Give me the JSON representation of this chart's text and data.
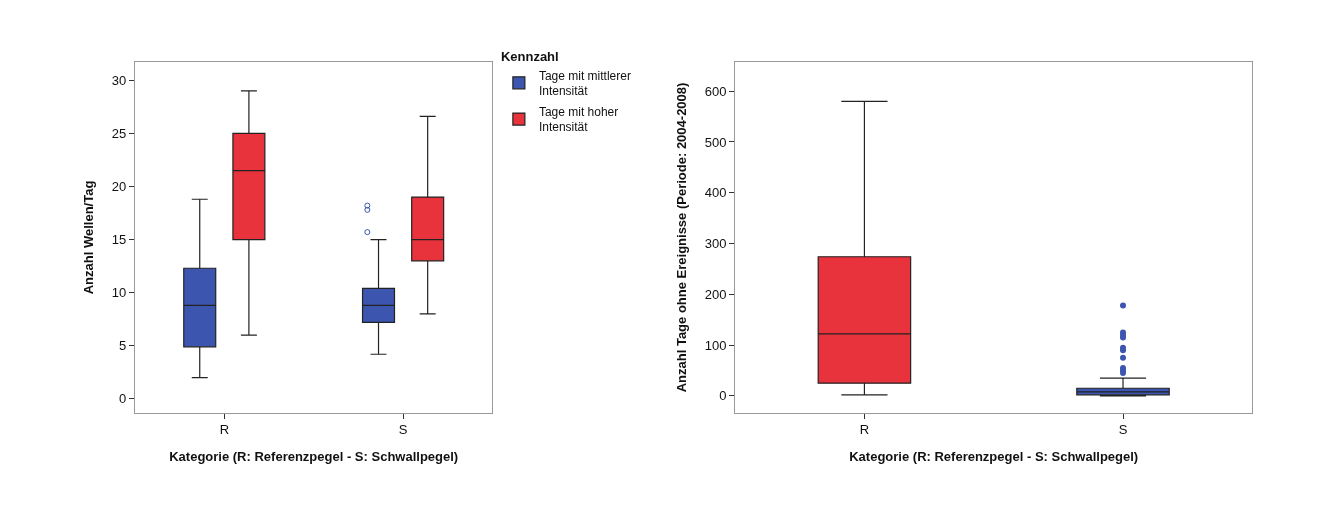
{
  "chart_data": [
    {
      "type": "box",
      "categories": [
        "R",
        "S"
      ],
      "xlabel": "Kategorie (R: Referenzpegel - S: Schwallpegel)",
      "ylabel": "Anzahl Wellen/Tag",
      "legend_title": "Kennzahl",
      "legend": "right",
      "ylim": [
        -1.3,
        31.7
      ],
      "yticks": [
        0,
        5,
        10,
        15,
        20,
        25,
        30
      ],
      "series": [
        {
          "name": "Tage mit mittlerer Intensität",
          "color": "#3c56b0",
          "boxes": [
            {
              "low": 2,
              "q1": 4.9,
              "median": 8.8,
              "q3": 12.3,
              "high": 18.8
            },
            {
              "low": 4.2,
              "q1": 7.2,
              "median": 8.8,
              "q3": 10.4,
              "high": 15,
              "outliers": [
                15.7,
                17.8,
                18.2
              ]
            }
          ]
        },
        {
          "name": "Tage mit hoher Intensität",
          "color": "#e8333c",
          "boxes": [
            {
              "low": 6,
              "q1": 15,
              "median": 21.5,
              "q3": 25,
              "high": 29
            },
            {
              "low": 8,
              "q1": 13,
              "median": 15,
              "q3": 19,
              "high": 26.6
            }
          ]
        }
      ]
    },
    {
      "type": "box",
      "categories": [
        "R",
        "S"
      ],
      "xlabel": "Kategorie (R: Referenzpegel - S: Schwallpegel)",
      "ylabel": "Anzahl Tage ohne Ereignisse (Periode: 2004-2008)",
      "legend": false,
      "ylim": [
        -33,
        657
      ],
      "yticks": [
        0,
        100,
        200,
        300,
        400,
        500,
        600
      ],
      "series": [
        {
          "colors": [
            "#e8333c",
            "#3c56b0"
          ],
          "boxes": [
            {
              "low": 2,
              "q1": 25,
              "median": 122,
              "q3": 274,
              "high": 580
            },
            {
              "low": 0,
              "q1": 2,
              "median": 8,
              "q3": 15,
              "high": 35,
              "outliers": [
                45,
                50,
                55,
                75,
                90,
                95,
                115,
                120,
                125,
                178
              ]
            }
          ]
        }
      ]
    }
  ]
}
